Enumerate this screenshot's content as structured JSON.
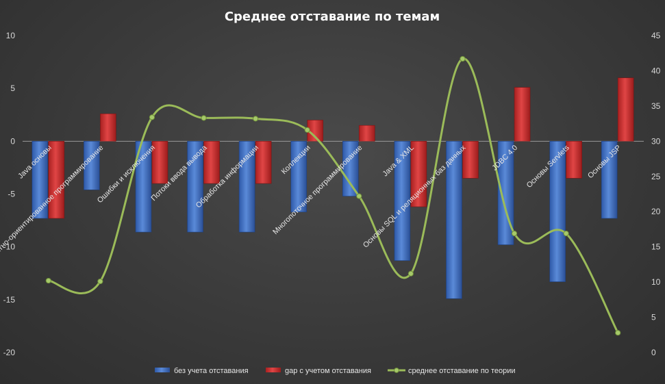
{
  "chart_data": {
    "type": "bar",
    "title": "Среднее отставание по темам",
    "categories": [
      "Java основы",
      "Объектно-ориентированное программирование",
      "Ошибки и исключения",
      "Потоки ввода вывода",
      "Обработка информации",
      "Коллекции",
      "Многопоточное программирование",
      "Java & XML",
      "Основы SQL и реляционных баз данных",
      "JDBC 4.0",
      "Основы Servlets",
      "Основы JSP"
    ],
    "series": [
      {
        "name": "без учета отставания",
        "type": "bar",
        "axis": "left",
        "color": "#4472c4",
        "values": [
          -7.3,
          -4.6,
          -8.6,
          -8.6,
          -8.6,
          -6.7,
          -5.2,
          -11.3,
          -14.9,
          -9.8,
          -13.3,
          -7.3
        ]
      },
      {
        "name": "gap с учетом отставания",
        "type": "bar",
        "axis": "left",
        "color": "#c0392b",
        "values": [
          -7.3,
          2.6,
          -4.0,
          -4.0,
          -4.0,
          2.0,
          1.5,
          -6.2,
          -3.5,
          5.1,
          -3.5,
          6.0
        ]
      },
      {
        "name": "среднее отставание по теории",
        "type": "line",
        "axis": "right",
        "color": "#9bbb59",
        "values": [
          10.2,
          10.1,
          33.4,
          33.3,
          33.2,
          31.6,
          22.2,
          11.2,
          41.7,
          16.9,
          16.9,
          2.8
        ]
      }
    ],
    "ylim": [
      -20,
      10
    ],
    "yticks": [
      -20,
      -15,
      -10,
      -5,
      0,
      5,
      10
    ],
    "y2lim": [
      0,
      45
    ],
    "y2ticks": [
      0,
      5,
      10,
      15,
      20,
      25,
      30,
      35,
      40,
      45
    ],
    "grid": false,
    "legend": "bottom"
  }
}
